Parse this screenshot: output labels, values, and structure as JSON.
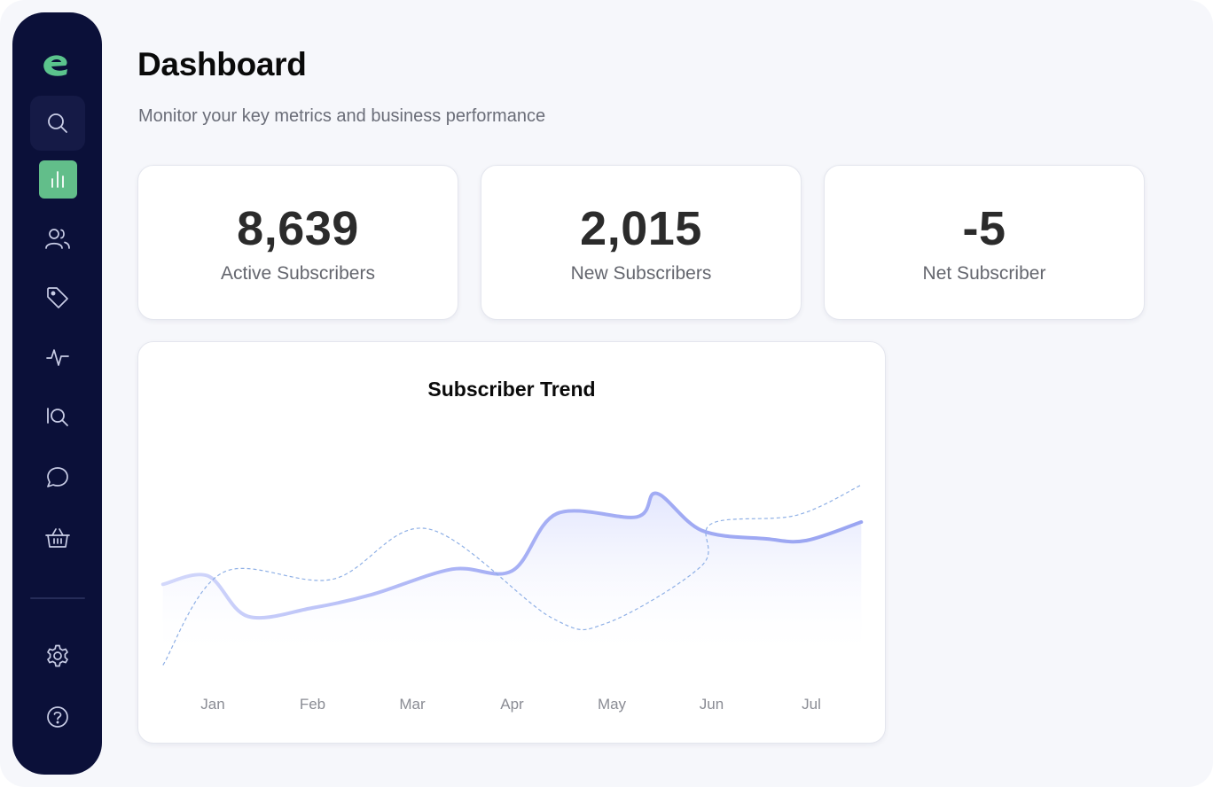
{
  "brand": {
    "logo_icon": "brand-e-logo-icon",
    "accent": "#62be8a",
    "sidebar_bg": "#0b1039"
  },
  "sidebar": {
    "items": [
      {
        "name": "search",
        "icon": "search-icon"
      },
      {
        "name": "analytics",
        "icon": "bar-chart-icon",
        "active": true
      },
      {
        "name": "users",
        "icon": "users-icon"
      },
      {
        "name": "tags",
        "icon": "tag-icon"
      },
      {
        "name": "activity",
        "icon": "activity-icon"
      },
      {
        "name": "iq",
        "icon": "iq-icon"
      },
      {
        "name": "messages",
        "icon": "chat-bubble-icon"
      },
      {
        "name": "shop",
        "icon": "basket-icon"
      }
    ],
    "bottom_items": [
      {
        "name": "settings",
        "icon": "gear-icon"
      },
      {
        "name": "help",
        "icon": "help-circle-icon"
      }
    ]
  },
  "header": {
    "title": "Dashboard",
    "subtitle": "Monitor your key metrics and business performance"
  },
  "metrics": [
    {
      "value": "8,639",
      "label": "Active Subscribers"
    },
    {
      "value": "2,015",
      "label": "New Subscribers"
    },
    {
      "value": "-5",
      "label": "Net Subscriber"
    }
  ],
  "chart_data": {
    "type": "line",
    "title": "Subscriber Trend",
    "categories": [
      "Jan",
      "Feb",
      "Mar",
      "Apr",
      "May",
      "Jun",
      "Jul"
    ],
    "grid": false,
    "series": [
      {
        "style": "solid",
        "color": "#a3acf4",
        "x": [
          -0.5,
          -0.05,
          0.35,
          1.0,
          1.6,
          2.4,
          3.0,
          3.45,
          4.25,
          4.45,
          4.9,
          5.55,
          5.95,
          6.5
        ],
        "values": [
          43,
          48,
          24,
          29,
          37,
          52,
          51,
          85,
          83,
          97,
          75,
          70,
          69,
          80
        ]
      },
      {
        "style": "dashed",
        "color": "#8fb0e6",
        "x": [
          -0.5,
          0.1,
          1.2,
          2.15,
          3.4,
          3.95,
          4.9,
          5.0,
          5.85,
          6.5
        ],
        "values": [
          -5,
          50,
          46,
          76,
          23,
          20,
          54,
          79,
          84,
          102
        ]
      }
    ]
  }
}
